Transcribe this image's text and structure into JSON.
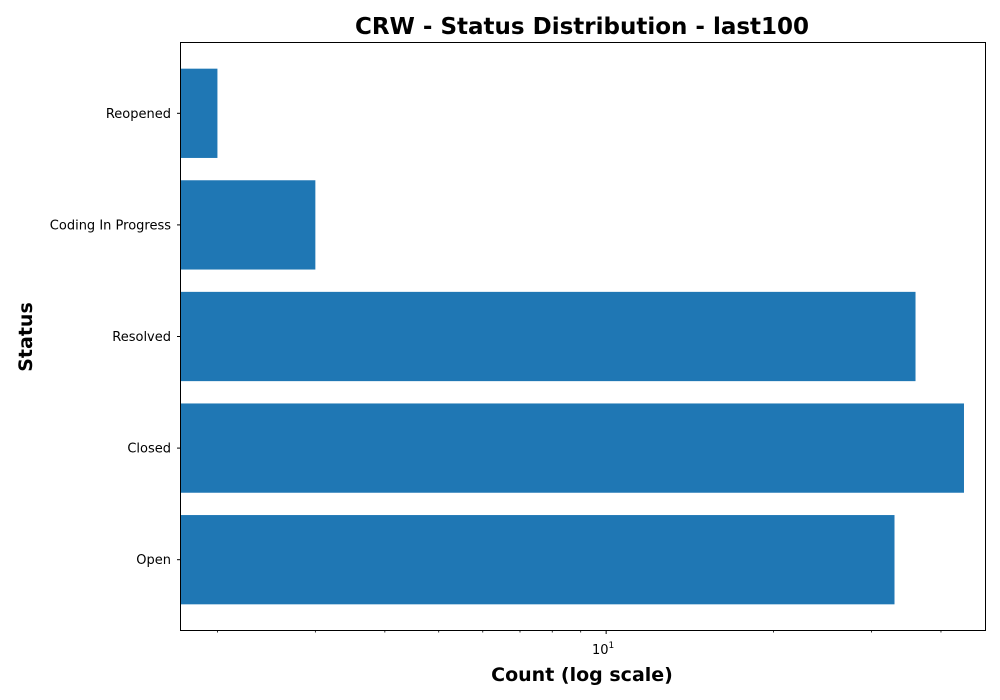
{
  "chart_data": {
    "type": "bar",
    "orientation": "horizontal",
    "title": "CRW - Status Distribution - last100",
    "xlabel": "Count (log scale)",
    "ylabel": "Status",
    "x_scale": "log",
    "xlim": [
      1.72,
      48
    ],
    "x_ticks": [
      {
        "base": "10",
        "exp": "1",
        "value": 10
      }
    ],
    "categories": [
      "Open",
      "Closed",
      "Resolved",
      "Coding In Progress",
      "Reopened"
    ],
    "values": [
      33,
      44,
      36,
      3,
      2
    ],
    "bar_color": "#1f77b4",
    "grid": false,
    "legend": false
  }
}
